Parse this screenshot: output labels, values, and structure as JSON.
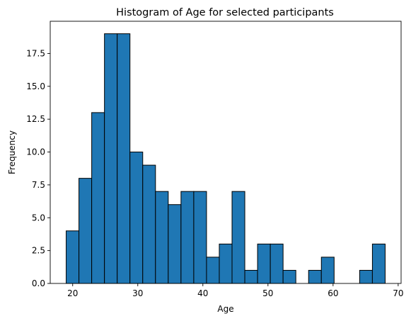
{
  "chart_data": {
    "type": "bar",
    "title": "Histogram of Age for selected participants",
    "xlabel": "Age",
    "ylabel": "Frequency",
    "bin_start": 19,
    "bin_width": 1.96,
    "values": [
      4,
      8,
      13,
      19,
      19,
      10,
      9,
      7,
      6,
      7,
      7,
      2,
      3,
      7,
      1,
      3,
      3,
      1,
      0,
      1,
      2,
      0,
      0,
      1,
      3
    ],
    "xlim": [
      16.55,
      70.45
    ],
    "ylim": [
      0,
      19.95
    ],
    "xticks": [
      20,
      30,
      40,
      50,
      60,
      70
    ],
    "xtick_labels": [
      "20",
      "30",
      "40",
      "50",
      "60",
      "70"
    ],
    "yticks": [
      0,
      2.5,
      5,
      7.5,
      10,
      12.5,
      15,
      17.5
    ],
    "ytick_labels": [
      "0.0",
      "2.5",
      "5.0",
      "7.5",
      "10.0",
      "12.5",
      "15.0",
      "17.5"
    ],
    "bar_color": "#1f77b4",
    "edge_color": "#000000",
    "grid": false,
    "legend": "none"
  }
}
